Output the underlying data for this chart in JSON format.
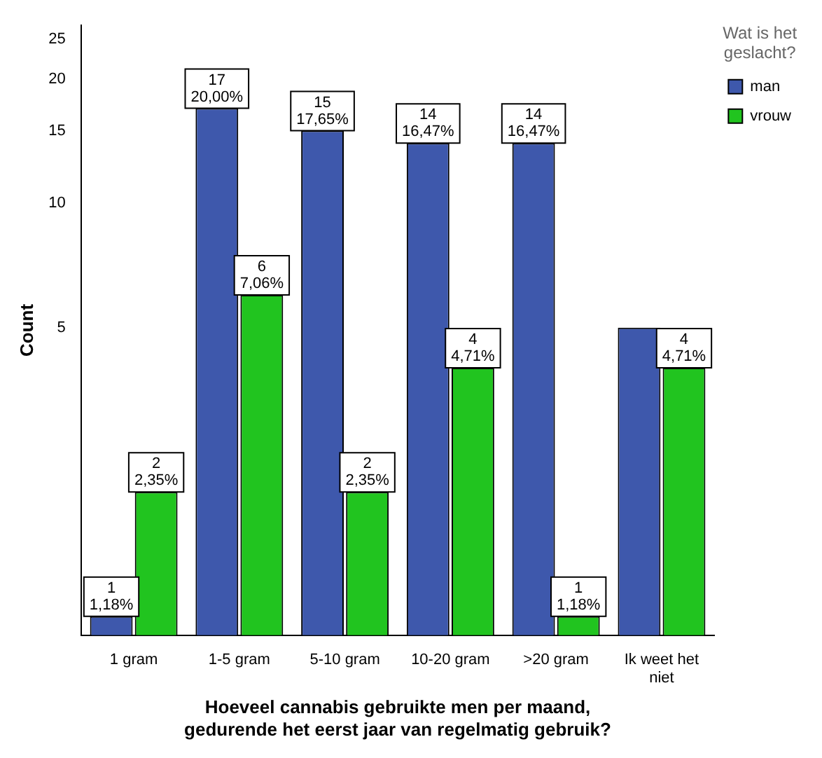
{
  "chart_data": {
    "type": "bar",
    "xlabel": "Hoeveel cannabis gebruikte men per maand, gedurende het eerst jaar van regelmatig gebruik?",
    "ylabel": "Count",
    "legend_title": "Wat is het geslacht?",
    "categories": [
      "1 gram",
      "1-5 gram",
      "5-10 gram",
      "10-20 gram",
      ">20 gram",
      "Ik weet het niet"
    ],
    "series": [
      {
        "name": "man",
        "color": "#3e58ac",
        "values": [
          1,
          17,
          15,
          14,
          14,
          5
        ],
        "value_labels": [
          "1\n1,18%",
          "17\n20,00%",
          "15\n17,65%",
          "14\n16,47%",
          "14\n16,47%",
          null
        ]
      },
      {
        "name": "vrouw",
        "color": "#21c41f",
        "values": [
          2,
          6,
          2,
          4,
          1,
          4
        ],
        "value_labels": [
          "2\n2,35%",
          "6\n7,06%",
          "2\n2,35%",
          "4\n4,71%",
          "1\n1,18%",
          "4\n4,71%"
        ]
      }
    ],
    "log": true,
    "ylim": [
      0.9,
      27
    ],
    "yticks": [
      5,
      10,
      15,
      20,
      25
    ],
    "grid": false,
    "legend": "top right"
  }
}
